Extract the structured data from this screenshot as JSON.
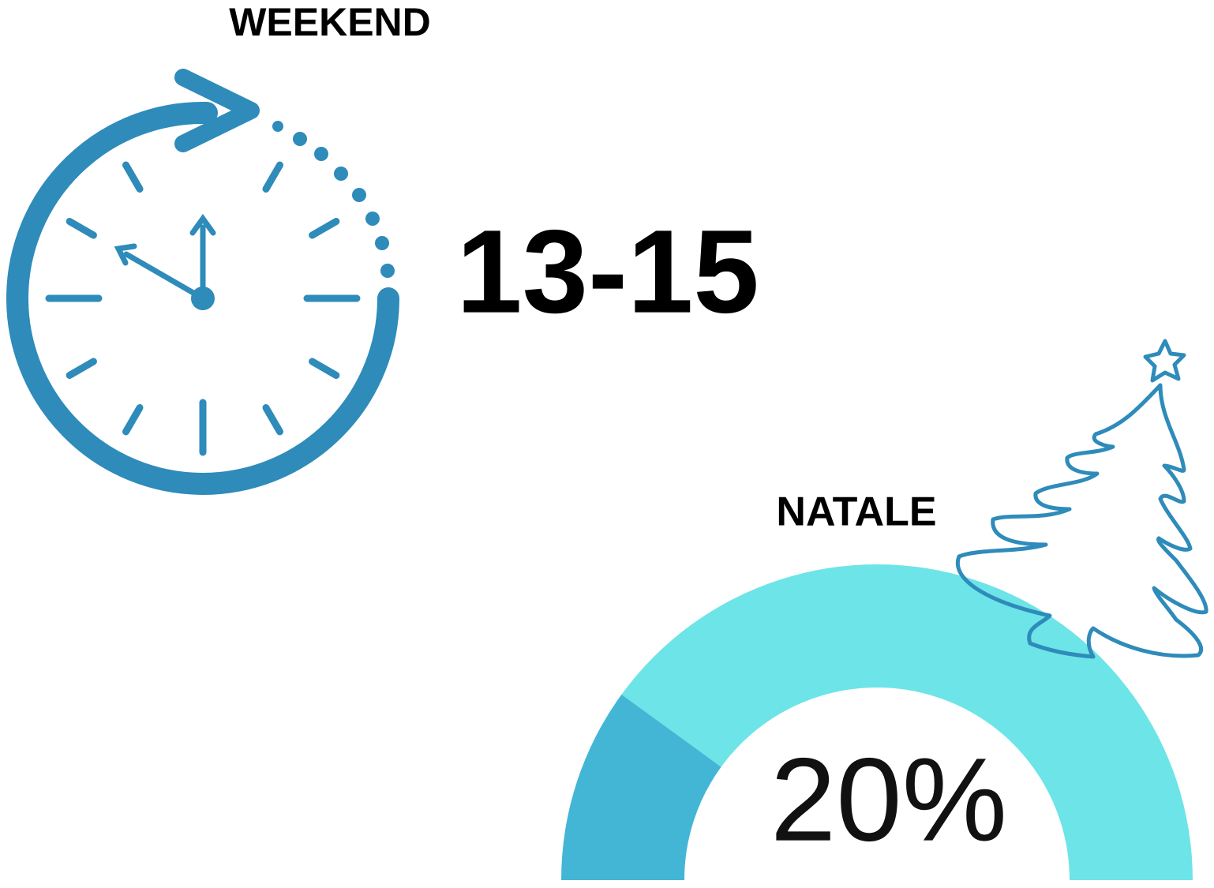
{
  "weekend": {
    "title": "WEEKEND",
    "value": "13-15"
  },
  "natale": {
    "title": "NATALE",
    "gauge": {
      "value": 20,
      "label": "20%"
    }
  }
}
